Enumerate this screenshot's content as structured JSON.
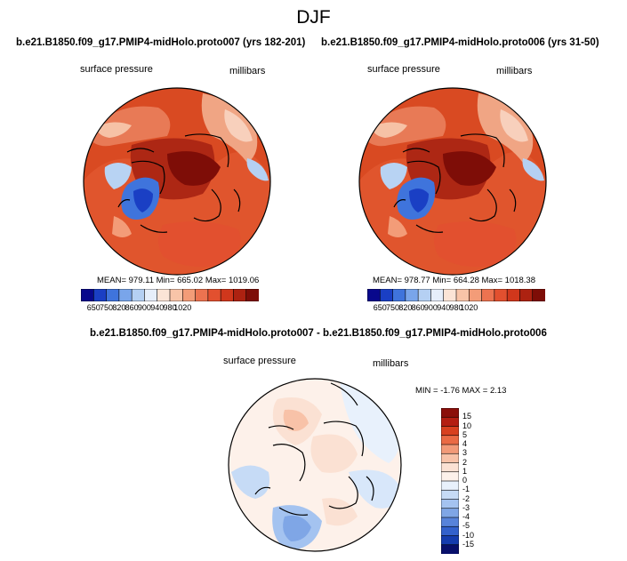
{
  "figure": {
    "title": "DJF"
  },
  "panels": [
    {
      "case": "b.e21.B1850.f09_g17.PMIP4-midHolo.proto007 (yrs 182-201)",
      "field_label": "surface pressure",
      "units_label": "millibars",
      "stats": "MEAN= 979.11  Min= 665.02  Max= 1019.06"
    },
    {
      "case": "b.e21.B1850.f09_g17.PMIP4-midHolo.proto006 (yrs 31-50)",
      "field_label": "surface pressure",
      "units_label": "millibars",
      "stats": "MEAN= 978.77  Min= 664.28  Max= 1018.38"
    },
    {
      "case": "b.e21.B1850.f09_g17.PMIP4-midHolo.proto007 - b.e21.B1850.f09_g17.PMIP4-midHolo.proto006",
      "field_label": "surface pressure",
      "units_label": "millibars",
      "stats": "MIN =  -1.76 MAX =   2.13"
    }
  ],
  "chart_data": [
    {
      "type": "heatmap",
      "projection": "north polar stereographic",
      "title": "b.e21.B1850.f09_g17.PMIP4-midHolo.proto007 (yrs 182-201)",
      "variable": "surface pressure",
      "units": "millibars",
      "mean": 979.11,
      "min": 665.02,
      "max": 1019.06,
      "colorbar": {
        "orientation": "horizontal",
        "ticks": [
          "650",
          "750",
          "820",
          "860",
          "900",
          "940",
          "980",
          "1020"
        ],
        "colors": [
          "#08088c",
          "#1a3fc4",
          "#3f74dc",
          "#79a5ea",
          "#b5d0f3",
          "#e6eefa",
          "#fbe4d6",
          "#f8c4a8",
          "#f39c78",
          "#ec7350",
          "#e2502f",
          "#d0371c",
          "#ad2211",
          "#7e0d07"
        ]
      }
    },
    {
      "type": "heatmap",
      "projection": "north polar stereographic",
      "title": "b.e21.B1850.f09_g17.PMIP4-midHolo.proto006 (yrs 31-50)",
      "variable": "surface pressure",
      "units": "millibars",
      "mean": 978.77,
      "min": 664.28,
      "max": 1018.38,
      "colorbar": {
        "orientation": "horizontal",
        "ticks": [
          "650",
          "750",
          "820",
          "860",
          "900",
          "940",
          "980",
          "1020"
        ],
        "colors": [
          "#08088c",
          "#1a3fc4",
          "#3f74dc",
          "#79a5ea",
          "#b5d0f3",
          "#e6eefa",
          "#fbe4d6",
          "#f8c4a8",
          "#f39c78",
          "#ec7350",
          "#e2502f",
          "#d0371c",
          "#ad2211",
          "#7e0d07"
        ]
      }
    },
    {
      "type": "heatmap",
      "projection": "north polar stereographic",
      "title": "b.e21.B1850.f09_g17.PMIP4-midHolo.proto007 - b.e21.B1850.f09_g17.PMIP4-midHolo.proto006",
      "variable": "surface pressure",
      "units": "millibars",
      "min": -1.76,
      "max": 2.13,
      "colorbar": {
        "orientation": "vertical",
        "ticks": [
          "15",
          "10",
          "5",
          "4",
          "3",
          "2",
          "1",
          "0",
          "-1",
          "-2",
          "-3",
          "-4",
          "-5",
          "-10",
          "-15"
        ],
        "colors": [
          "#8b0f0a",
          "#b41e12",
          "#d8401f",
          "#ea6a44",
          "#f29a78",
          "#f8c2a8",
          "#fbe1d3",
          "#fdf1ea",
          "#e8f1fc",
          "#c6dbf6",
          "#a4c3f0",
          "#7fa6e6",
          "#5783da",
          "#3261cc",
          "#143cae",
          "#08106b"
        ]
      }
    }
  ]
}
